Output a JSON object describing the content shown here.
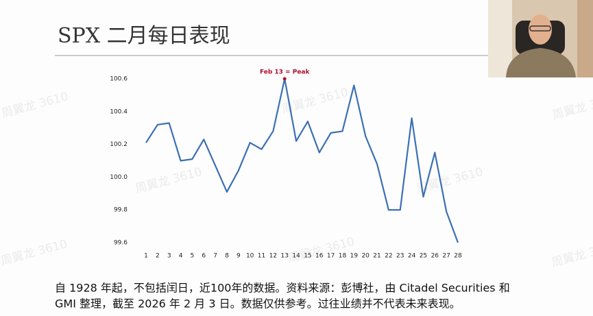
{
  "header": {
    "title": "SPX 二月每日表现"
  },
  "chart_data": {
    "type": "line",
    "categories": [
      "1",
      "2",
      "3",
      "4",
      "5",
      "6",
      "7",
      "8",
      "9",
      "10",
      "11",
      "12",
      "13",
      "14",
      "15",
      "16",
      "17",
      "18",
      "19",
      "20",
      "21",
      "22",
      "23",
      "24",
      "25",
      "26",
      "27",
      "28"
    ],
    "values": [
      100.21,
      100.32,
      100.33,
      100.1,
      100.11,
      100.23,
      100.07,
      99.91,
      100.04,
      100.21,
      100.17,
      100.28,
      100.6,
      100.22,
      100.34,
      100.15,
      100.27,
      100.28,
      100.56,
      100.25,
      100.08,
      99.8,
      99.8,
      100.36,
      99.88,
      100.15,
      99.79,
      99.6
    ],
    "color": "#3a6fb5",
    "ylim": [
      99.56,
      100.64
    ],
    "yticks": [
      99.6,
      99.8,
      {
        "value": 100,
        "label": "100.0"
      },
      100.2,
      100.4,
      100.6
    ],
    "grid": false,
    "annotation": {
      "text": "Feb 13 = Peak",
      "category": "13",
      "color": "#b0102a"
    }
  },
  "footer": {
    "lines": [
      "自 1928 年起，不包括闰日，近100年的数据。资料来源：彭博社，由 Citadel Securities 和",
      "GMI 整理，截至 2026 年 2 月 3 日。数据仅供参考。过往业绩并不代表未来表现。"
    ]
  },
  "watermark": "周翼龙 3610"
}
